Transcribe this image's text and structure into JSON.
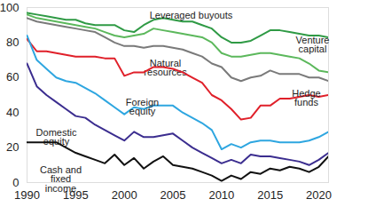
{
  "chart_data": {
    "type": "line",
    "x": [
      1990,
      1991,
      1992,
      1993,
      1994,
      1995,
      1996,
      1997,
      1998,
      1999,
      2000,
      2001,
      2002,
      2003,
      2004,
      2005,
      2006,
      2007,
      2008,
      2009,
      2010,
      2011,
      2012,
      2013,
      2014,
      2015,
      2016,
      2017,
      2018,
      2019,
      2020,
      2021
    ],
    "series": [
      {
        "name": "Leveraged buyouts",
        "color": "#2f9a45",
        "values": [
          97,
          96,
          95,
          94,
          93,
          93,
          91,
          90,
          90,
          90,
          87,
          86,
          90,
          93,
          94,
          93,
          92,
          92,
          90,
          88,
          83,
          80,
          80,
          81,
          84,
          87,
          87,
          86,
          85,
          84,
          84,
          83
        ]
      },
      {
        "name": "Venture capital",
        "color": "#5cb85c",
        "values": [
          96,
          94,
          93,
          92,
          91,
          90,
          89,
          88,
          86,
          84,
          83,
          84,
          85,
          88,
          87,
          86,
          85,
          84,
          83,
          80,
          74,
          72,
          72,
          73,
          74,
          74,
          73,
          72,
          71,
          68,
          64,
          63
        ]
      },
      {
        "name": "Natural resources",
        "color": "#7a7a7a",
        "values": [
          94,
          92,
          91,
          90,
          89,
          88,
          87,
          86,
          83,
          80,
          78,
          78,
          77,
          78,
          78,
          77,
          76,
          74,
          72,
          68,
          66,
          60,
          58,
          60,
          61,
          64,
          62,
          62,
          62,
          60,
          60,
          58
        ]
      },
      {
        "name": "Hedge funds",
        "color": "#e0202a",
        "values": [
          82,
          75,
          75,
          74,
          73,
          72,
          72,
          72,
          71,
          71,
          61,
          63,
          63,
          66,
          66,
          65,
          63,
          60,
          57,
          50,
          47,
          42,
          36,
          37,
          44,
          44,
          48,
          48,
          49,
          50,
          49,
          50
        ]
      },
      {
        "name": "Foreign equity",
        "color": "#2ea6e0",
        "values": [
          84,
          70,
          65,
          60,
          58,
          57,
          54,
          51,
          47,
          43,
          39,
          43,
          42,
          44,
          44,
          44,
          40,
          37,
          34,
          30,
          19,
          22,
          20,
          23,
          24,
          24,
          23,
          23,
          23,
          24,
          26,
          29
        ]
      },
      {
        "name": "Domestic equity",
        "color": "#3b2d8f",
        "values": [
          68,
          55,
          50,
          46,
          42,
          38,
          37,
          33,
          30,
          27,
          24,
          29,
          26,
          26,
          27,
          28,
          24,
          20,
          17,
          14,
          11,
          13,
          11,
          16,
          15,
          15,
          14,
          13,
          12,
          10,
          13,
          17
        ]
      },
      {
        "name": "Cash and fixed income",
        "color": "#111111",
        "values": [
          23,
          23,
          23,
          23,
          20,
          17,
          15,
          13,
          11,
          16,
          10,
          14,
          8,
          12,
          15,
          10,
          9,
          8,
          6,
          4,
          1,
          4,
          2,
          6,
          5,
          8,
          7,
          9,
          8,
          6,
          9,
          15
        ]
      }
    ],
    "xlim": [
      1990,
      2021
    ],
    "xticks": [
      1990,
      1995,
      2000,
      2005,
      2010,
      2015,
      2020
    ],
    "ylim": [
      0,
      100
    ],
    "yticks": [
      0,
      20,
      40,
      60,
      80,
      100
    ],
    "grid": false
  }
}
